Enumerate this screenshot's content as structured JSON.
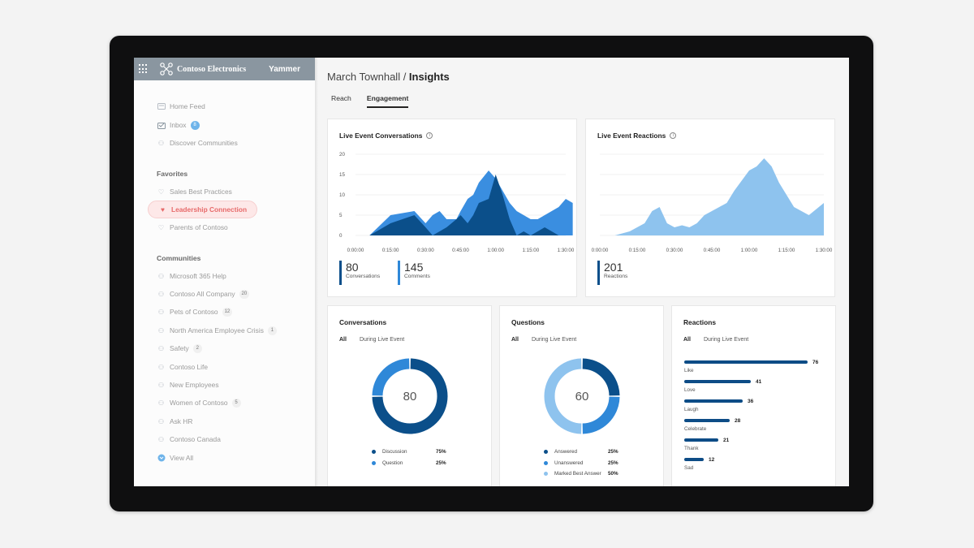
{
  "header": {
    "org_name": "Contoso Electronics",
    "app_name": "Yammer"
  },
  "nav": {
    "home": "Home Feed",
    "inbox": "Inbox",
    "inbox_badge": "8",
    "discover": "Discover Communities",
    "favorites_title": "Favorites",
    "favorites": [
      "Sales Best Practices",
      "Leadership Connection",
      "Parents of Contoso"
    ],
    "communities_title": "Communities",
    "communities": [
      {
        "label": "Microsoft 365 Help",
        "badge": ""
      },
      {
        "label": "Contoso All Company",
        "badge": "20"
      },
      {
        "label": "Pets of Contoso",
        "badge": "12"
      },
      {
        "label": "North America Employee Crisis",
        "badge": "1"
      },
      {
        "label": "Safety",
        "badge": "2"
      },
      {
        "label": "Contoso Life",
        "badge": ""
      },
      {
        "label": "New Employees",
        "badge": ""
      },
      {
        "label": "Women of Contoso",
        "badge": "5"
      },
      {
        "label": "Ask HR",
        "badge": ""
      },
      {
        "label": "Contoso Canada",
        "badge": ""
      }
    ],
    "view_all": "View All"
  },
  "page": {
    "title_prefix": "March Townhall / ",
    "title_bold": "Insights",
    "tabs": [
      "Reach",
      "Engagement"
    ],
    "active_tab": "Engagement"
  },
  "conversations_card": {
    "title": "Live Event Conversations",
    "stats": [
      {
        "value": "80",
        "label": "Conversations"
      },
      {
        "value": "145",
        "label": "Comments"
      }
    ]
  },
  "reactions_card": {
    "title": "Live Event Reactions",
    "stats": [
      {
        "value": "201",
        "label": "Reactions"
      }
    ]
  },
  "conv_donut_card": {
    "title": "Conversations",
    "filter_all": "All",
    "filter_live": "During Live Event",
    "center": "80",
    "legend": [
      {
        "label": "Discussion",
        "pct": "75%"
      },
      {
        "label": "Question",
        "pct": "25%"
      }
    ]
  },
  "questions_donut_card": {
    "title": "Questions",
    "filter_all": "All",
    "filter_live": "During Live Event",
    "center": "60",
    "legend": [
      {
        "label": "Answered",
        "pct": "25%"
      },
      {
        "label": "Unanswered",
        "pct": "25%"
      },
      {
        "label": "Marked Best Answer",
        "pct": "50%"
      }
    ]
  },
  "reactions_bar_card": {
    "title": "Reactions",
    "filter_all": "All",
    "filter_live": "During Live Event"
  },
  "colors": {
    "dark": "#0b4f8a",
    "mid": "#2f88d8",
    "light": "#8ec3ee",
    "conv_back": "#3a8ee0",
    "bar": "#0d4c86"
  },
  "chart_data": [
    {
      "type": "area",
      "title": "Live Event Conversations",
      "x": [
        "0:00:00",
        "0:15:00",
        "0:30:00",
        "0:45:00",
        "1:00:00",
        "1:15:00",
        "1:30:00"
      ],
      "ylim": [
        0,
        20
      ],
      "yticks": [
        0,
        5,
        10,
        15,
        20
      ],
      "series": [
        {
          "x": [
            0.1,
            0.25,
            0.42,
            0.5,
            0.55,
            0.6,
            0.65,
            0.72,
            0.75,
            0.8,
            0.84,
            0.88,
            0.95,
            1.0,
            1.05,
            1.1,
            1.15,
            1.2,
            1.25,
            1.3,
            1.35,
            1.4,
            1.45,
            1.5,
            1.55
          ],
          "values": [
            0,
            5,
            6,
            3,
            5,
            6,
            4,
            4,
            6,
            9,
            10,
            13,
            16,
            14,
            11,
            8,
            6,
            5,
            4,
            4,
            5,
            6,
            7,
            9,
            8
          ]
        },
        {
          "x": [
            0.1,
            0.25,
            0.42,
            0.5,
            0.55,
            0.6,
            0.65,
            0.72,
            0.75,
            0.8,
            0.84,
            0.88,
            0.95,
            1.0,
            1.05,
            1.1,
            1.15,
            1.2,
            1.25,
            1.3,
            1.35,
            1.4,
            1.45,
            1.5
          ],
          "values": [
            0,
            3,
            5,
            2,
            0,
            1,
            2,
            4,
            5,
            3,
            5,
            8,
            9,
            15,
            10,
            4,
            0,
            1,
            0,
            1,
            2,
            1,
            0,
            0
          ]
        }
      ]
    },
    {
      "type": "area",
      "title": "Live Event Reactions",
      "x": [
        "0:00:00",
        "0:15:00",
        "0:30:00",
        "0:45:00",
        "1:00:00",
        "1:15:00",
        "1:30:00"
      ],
      "series": [
        {
          "x": [
            0.1,
            0.2,
            0.3,
            0.35,
            0.4,
            0.45,
            0.5,
            0.55,
            0.6,
            0.65,
            0.7,
            0.75,
            0.8,
            0.85,
            0.9,
            1.0,
            1.05,
            1.1,
            1.15,
            1.2,
            1.3,
            1.4,
            1.5
          ],
          "values": [
            0,
            1,
            3,
            6,
            7,
            3,
            2,
            2.5,
            2,
            3,
            5,
            6,
            7,
            8,
            11,
            16,
            17,
            19,
            17,
            13,
            7,
            5,
            8
          ]
        }
      ]
    },
    {
      "type": "pie",
      "title": "Conversations",
      "labels": [
        "Discussion",
        "Question"
      ],
      "values": [
        75,
        25
      ]
    },
    {
      "type": "pie",
      "title": "Questions",
      "labels": [
        "Answered",
        "Unanswered",
        "Marked Best Answer"
      ],
      "values": [
        25,
        25,
        50
      ]
    },
    {
      "type": "bar",
      "title": "Reactions",
      "categories": [
        "Like",
        "Love",
        "Laugh",
        "Celebrate",
        "Thank",
        "Sad"
      ],
      "values": [
        76,
        41,
        36,
        28,
        21,
        12
      ]
    }
  ]
}
